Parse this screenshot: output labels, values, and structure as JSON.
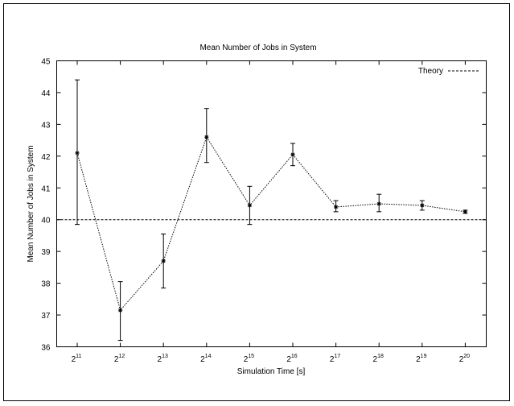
{
  "chart_data": {
    "type": "line",
    "title": "Mean Number of Jobs in System",
    "xlabel": "Simulation Time [s]",
    "ylabel": "Mean Number of Jobs in System",
    "x_ticks": [
      {
        "base": "2",
        "exp": "11"
      },
      {
        "base": "2",
        "exp": "12"
      },
      {
        "base": "2",
        "exp": "13"
      },
      {
        "base": "2",
        "exp": "14"
      },
      {
        "base": "2",
        "exp": "15"
      },
      {
        "base": "2",
        "exp": "16"
      },
      {
        "base": "2",
        "exp": "17"
      },
      {
        "base": "2",
        "exp": "18"
      },
      {
        "base": "2",
        "exp": "19"
      },
      {
        "base": "2",
        "exp": "20"
      }
    ],
    "ylim": [
      36,
      45
    ],
    "y_ticks": [
      "36",
      "37",
      "38",
      "39",
      "40",
      "41",
      "42",
      "43",
      "44",
      "45"
    ],
    "series": [
      {
        "name": "",
        "style": "dotted-with-errorbars",
        "points": [
          {
            "x_exp": 11,
            "y": 42.1,
            "low": 39.85,
            "high": 44.4
          },
          {
            "x_exp": 12,
            "y": 37.15,
            "low": 36.2,
            "high": 38.05
          },
          {
            "x_exp": 13,
            "y": 38.7,
            "low": 37.85,
            "high": 39.55
          },
          {
            "x_exp": 14,
            "y": 42.6,
            "low": 41.8,
            "high": 43.5
          },
          {
            "x_exp": 15,
            "y": 40.45,
            "low": 39.85,
            "high": 41.05
          },
          {
            "x_exp": 16,
            "y": 42.05,
            "low": 41.7,
            "high": 42.4
          },
          {
            "x_exp": 17,
            "y": 40.4,
            "low": 40.25,
            "high": 40.6
          },
          {
            "x_exp": 18,
            "y": 40.5,
            "low": 40.25,
            "high": 40.8
          },
          {
            "x_exp": 19,
            "y": 40.45,
            "low": 40.3,
            "high": 40.6
          },
          {
            "x_exp": 20,
            "y": 40.25,
            "low": 40.2,
            "high": 40.3
          }
        ]
      }
    ],
    "reference_line": {
      "name": "Theory",
      "y": 40,
      "style": "dashed"
    },
    "legend_position": "top-right",
    "grid": false
  }
}
